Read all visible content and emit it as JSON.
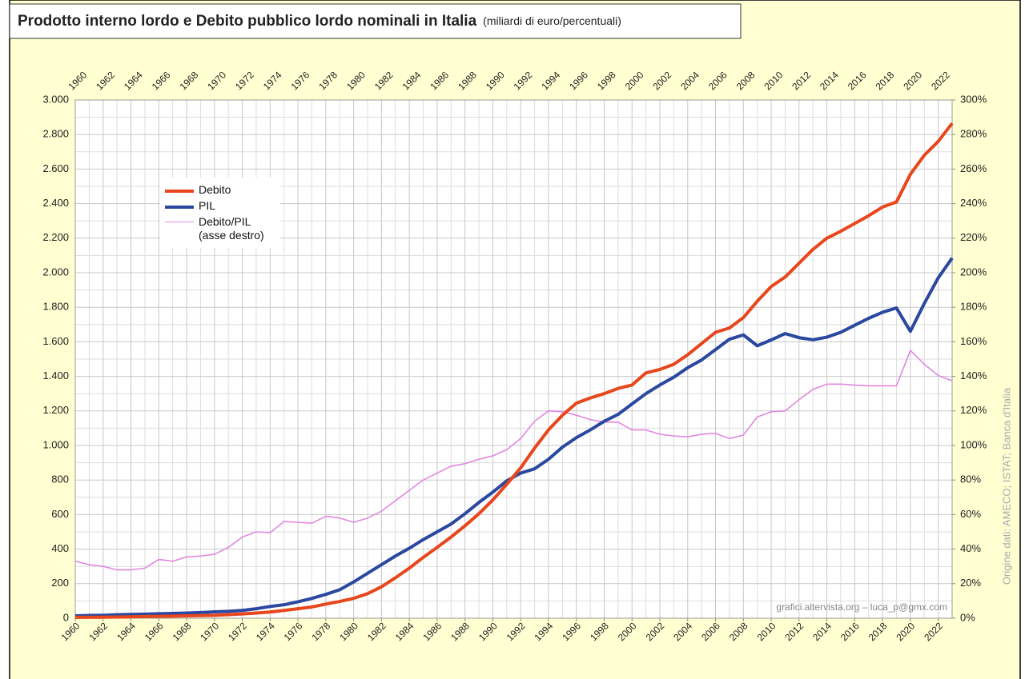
{
  "chart_data": {
    "type": "line",
    "title": "Prodotto interno lordo e Debito pubblico lordo nominali in Italia",
    "subtitle": "(miliardi di euro/percentuali)",
    "x": [
      1960,
      1961,
      1962,
      1963,
      1964,
      1965,
      1966,
      1967,
      1968,
      1969,
      1970,
      1971,
      1972,
      1973,
      1974,
      1975,
      1976,
      1977,
      1978,
      1979,
      1980,
      1981,
      1982,
      1983,
      1984,
      1985,
      1986,
      1987,
      1988,
      1989,
      1990,
      1991,
      1992,
      1993,
      1994,
      1995,
      1996,
      1997,
      1998,
      1999,
      2000,
      2001,
      2002,
      2003,
      2004,
      2005,
      2006,
      2007,
      2008,
      2009,
      2010,
      2011,
      2012,
      2013,
      2014,
      2015,
      2016,
      2017,
      2018,
      2019,
      2020,
      2021,
      2022,
      2023
    ],
    "xlim": [
      1960,
      2023
    ],
    "xticks": [
      1960,
      1962,
      1964,
      1966,
      1968,
      1970,
      1972,
      1974,
      1976,
      1978,
      1980,
      1982,
      1984,
      1986,
      1988,
      1990,
      1992,
      1994,
      1996,
      1998,
      2000,
      2002,
      2004,
      2006,
      2008,
      2010,
      2012,
      2014,
      2016,
      2018,
      2020,
      2022
    ],
    "ylim": [
      0,
      3000
    ],
    "yticks": [
      0,
      200,
      400,
      600,
      800,
      {
        "value": 1000,
        "label": "1.000"
      },
      {
        "value": 1200,
        "label": "1.200"
      },
      {
        "value": 1400,
        "label": "1.400"
      },
      {
        "value": 1600,
        "label": "1.600"
      },
      {
        "value": 1800,
        "label": "1.800"
      },
      {
        "value": 2000,
        "label": "2.000"
      },
      {
        "value": 2200,
        "label": "2.200"
      },
      {
        "value": 2400,
        "label": "2.400"
      },
      {
        "value": 2600,
        "label": "2.600"
      },
      {
        "value": 2800,
        "label": "2.800"
      },
      {
        "value": 3000,
        "label": "3.000"
      }
    ],
    "y2lim": [
      0,
      300
    ],
    "y2ticks": [
      {
        "value": 0,
        "label": "0%"
      },
      {
        "value": 20,
        "label": "20%"
      },
      {
        "value": 40,
        "label": "40%"
      },
      {
        "value": 60,
        "label": "60%"
      },
      {
        "value": 80,
        "label": "80%"
      },
      {
        "value": 100,
        "label": "100%"
      },
      {
        "value": 120,
        "label": "120%"
      },
      {
        "value": 140,
        "label": "140%"
      },
      {
        "value": 160,
        "label": "160%"
      },
      {
        "value": 180,
        "label": "180%"
      },
      {
        "value": 200,
        "label": "200%"
      },
      {
        "value": 220,
        "label": "220%"
      },
      {
        "value": 240,
        "label": "240%"
      },
      {
        "value": 260,
        "label": "260%"
      },
      {
        "value": 280,
        "label": "280%"
      },
      {
        "value": 300,
        "label": "300%"
      }
    ],
    "grid": true,
    "legend": "upper-left",
    "credit": "grafici.altervista.org – luca_p@gmx.com",
    "source": "Origine dati: AMECO; ISTAT; Banca d'Italia",
    "series": [
      {
        "name": "Debito",
        "color": "#e8461c",
        "width": 4,
        "values": [
          5,
          5,
          6,
          7,
          8,
          10,
          11,
          12,
          14,
          15,
          17,
          21,
          25,
          30,
          36,
          45,
          55,
          65,
          82,
          97,
          115,
          142,
          182,
          234,
          290,
          352,
          410,
          470,
          535,
          605,
          685,
          775,
          870,
          985,
          1090,
          1175,
          1245,
          1275,
          1300,
          1330,
          1350,
          1420,
          1440,
          1470,
          1525,
          1590,
          1655,
          1680,
          1740,
          1835,
          1920,
          1975,
          2055,
          2135,
          2200,
          2240,
          2285,
          2330,
          2380,
          2410,
          2570,
          2680,
          2760,
          2865
        ]
      },
      {
        "name": "PIL",
        "color": "#2a48a0",
        "width": 4,
        "values": [
          14,
          16,
          17,
          20,
          22,
          24,
          26,
          28,
          30,
          33,
          37,
          40,
          45,
          55,
          68,
          78,
          95,
          115,
          138,
          165,
          210,
          260,
          310,
          360,
          405,
          455,
          500,
          545,
          605,
          670,
          730,
          795,
          840,
          865,
          920,
          990,
          1045,
          1090,
          1140,
          1180,
          1240,
          1300,
          1350,
          1395,
          1450,
          1495,
          1555,
          1615,
          1640,
          1577,
          1611,
          1648,
          1624,
          1612,
          1627,
          1655,
          1696,
          1736,
          1771,
          1796,
          1661,
          1822,
          1970,
          2085
        ]
      },
      {
        "name": "Debito/PIL\n(asse destro)",
        "color": "#e088e0",
        "width": 1.6,
        "axis": "y2",
        "values": [
          33,
          31,
          30,
          28,
          28,
          29,
          34,
          33,
          35.5,
          36,
          37,
          41,
          47,
          50,
          49.5,
          56,
          55.5,
          55,
          59,
          58,
          55.5,
          58,
          62,
          68,
          74,
          80,
          84,
          88,
          89.5,
          92,
          94,
          97.5,
          104,
          114,
          120,
          119.5,
          117.5,
          115,
          113.5,
          113.5,
          109,
          109,
          106.5,
          105.5,
          105,
          106.5,
          107,
          104,
          106,
          116.5,
          119.5,
          120,
          126.5,
          132.5,
          135.5,
          135.5,
          135,
          134.5,
          134.5,
          134.5,
          155,
          147,
          140.5,
          137.5
        ]
      }
    ]
  }
}
